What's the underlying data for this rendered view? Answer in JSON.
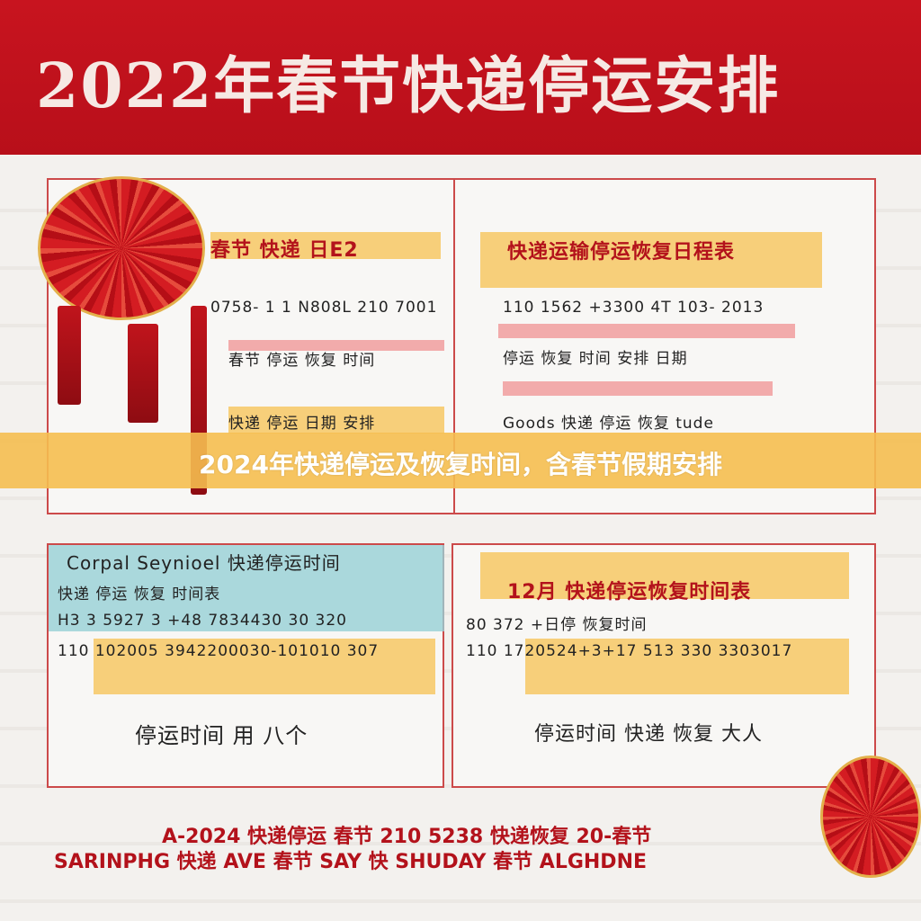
{
  "header": {
    "title": "2022年春节快递停运安排"
  },
  "panel_left_top": {
    "title": "春节 快递 日E2",
    "line1": "0758- 1 1 N808L 210 7001",
    "line2": "春节 停运 恢复 时间",
    "line3": "快递 停运 日期 安排"
  },
  "panel_right_top": {
    "title": "快递运输停运恢复日程表",
    "line1": "110 1562 +3300 4T 103- 2013",
    "line2": "停运 恢复 时间 安排 日期",
    "line3": "Goods 快递 停运 恢复 tude"
  },
  "panel_left_bottom": {
    "title": "Corpal Seynioel 快递停运时间",
    "line1": "快递 停运 恢复 时间表",
    "line2": "H3 3 5927 3 +48 7834430 30 320",
    "line3": "110 102005 3942200030-101010 307",
    "line4": "停运时间 用 八个"
  },
  "panel_right_bottom": {
    "title": "12月 快递停运恢复时间表",
    "line1": "80 372 +日停 恢复时间",
    "line2": "110 1720524+3+17 513 330 3303017",
    "line3": "停运时间 快递 恢复 大人"
  },
  "footer": {
    "line1": "A-2024 快递停运 春节   210 5238 快递恢复 20-春节",
    "line2": "SARINPHG 快递 AVE 春节 SAY 快  SHUDAY 春节 ALGHDNE"
  },
  "banner": {
    "text": "2024年快递停运及恢复时间，含春节假期安排"
  },
  "colors": {
    "header_red": "#c8141f",
    "banner_yellow": "#f5be50",
    "highlight_blue": "#96d0d6"
  }
}
